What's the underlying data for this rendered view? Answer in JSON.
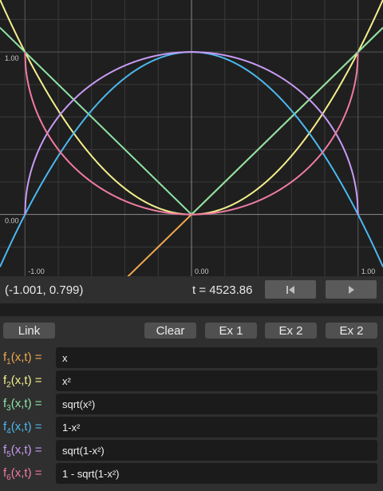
{
  "plot": {
    "x_range": [
      -1.15,
      1.15
    ],
    "y_range": [
      -0.38,
      1.32
    ],
    "tick_labels": {
      "x_left": "-1.00",
      "x_mid": "0.00",
      "x_right": "1.00",
      "y_top": "1.00",
      "y_mid": "0.00"
    },
    "grid_color": "#3a3a3a",
    "axis_color": "#8a8a8a"
  },
  "status": {
    "coord": "(-1.001, 0.799)",
    "time": "t = 4523.86",
    "restart_icon": "skip-to-start-icon",
    "play_icon": "play-icon"
  },
  "buttons": {
    "link": "Link",
    "clear": "Clear",
    "ex1": "Ex 1",
    "ex2a": "Ex 2",
    "ex2b": "Ex 2"
  },
  "functions": [
    {
      "name": "f",
      "index": "1",
      "args": "(x,t) =",
      "expr": "x",
      "color": "#f0a94e"
    },
    {
      "name": "f",
      "index": "2",
      "args": "(x,t) =",
      "expr": "x²",
      "color": "#f4ef8c"
    },
    {
      "name": "f",
      "index": "3",
      "args": "(x,t) =",
      "expr": "sqrt(x²)",
      "color": "#8fe3a6"
    },
    {
      "name": "f",
      "index": "4",
      "args": "(x,t) =",
      "expr": "1-x²",
      "color": "#4cb8ee"
    },
    {
      "name": "f",
      "index": "5",
      "args": "(x,t) =",
      "expr": "sqrt(1-x²)",
      "color": "#c79bf4"
    },
    {
      "name": "f",
      "index": "6",
      "args": "(x,t) =",
      "expr": "1 - sqrt(1-x²)",
      "color": "#f07ba2"
    }
  ],
  "chart_data": {
    "type": "line",
    "xlim": [
      -1.15,
      1.15
    ],
    "ylim": [
      -0.38,
      1.32
    ],
    "series": [
      {
        "name": "x",
        "points": [
          [
            -1.15,
            -1.15
          ],
          [
            1.15,
            1.15
          ]
        ]
      },
      {
        "name": "x²",
        "points": [
          [
            -1.15,
            1.3225
          ],
          [
            -0.5,
            0.25
          ],
          [
            0,
            0
          ],
          [
            0.5,
            0.25
          ],
          [
            1.15,
            1.3225
          ]
        ]
      },
      {
        "name": "sqrt(x²)",
        "points": [
          [
            -1.15,
            1.15
          ],
          [
            0,
            0
          ],
          [
            1.15,
            1.15
          ]
        ]
      },
      {
        "name": "1-x²",
        "points": [
          [
            -1.15,
            -0.3225
          ],
          [
            -0.5,
            0.75
          ],
          [
            0,
            1
          ],
          [
            0.5,
            0.75
          ],
          [
            1.15,
            -0.3225
          ]
        ]
      },
      {
        "name": "sqrt(1-x²)",
        "points": [
          [
            -1,
            0
          ],
          [
            -0.5,
            0.866
          ],
          [
            0,
            1
          ],
          [
            0.5,
            0.866
          ],
          [
            1,
            0
          ]
        ]
      },
      {
        "name": "1 - sqrt(1-x²)",
        "points": [
          [
            -1,
            1
          ],
          [
            -0.5,
            0.134
          ],
          [
            0,
            0
          ],
          [
            0.5,
            0.134
          ],
          [
            1,
            1
          ]
        ]
      }
    ]
  }
}
